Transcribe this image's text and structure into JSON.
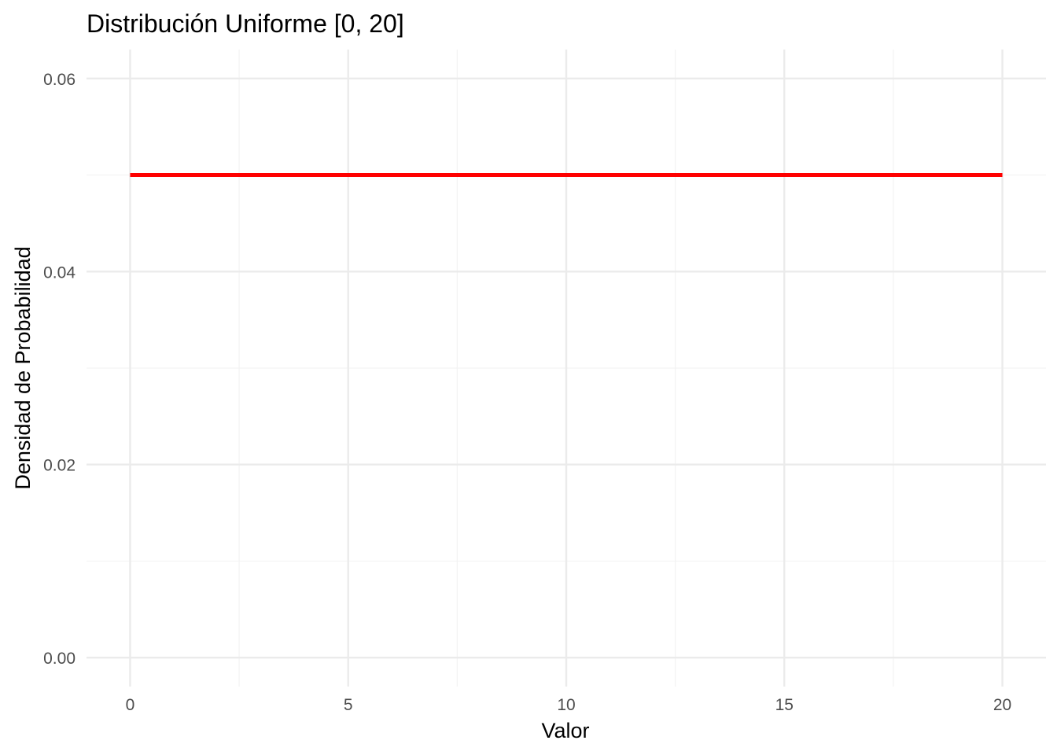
{
  "chart_data": {
    "type": "line",
    "title": "Distribución Uniforme [0, 20]",
    "xlabel": "Valor",
    "ylabel": "Densidad de Probabilidad",
    "xlim": [
      -1,
      21
    ],
    "ylim": [
      -0.003,
      0.063
    ],
    "x_ticks": [
      0,
      5,
      10,
      15,
      20
    ],
    "x_tick_labels": [
      "0",
      "5",
      "10",
      "15",
      "20"
    ],
    "x_minor_ticks": [
      2.5,
      7.5,
      12.5,
      17.5
    ],
    "y_ticks": [
      0.0,
      0.02,
      0.04,
      0.06
    ],
    "y_tick_labels": [
      "0.00",
      "0.02",
      "0.04",
      "0.06"
    ],
    "y_minor_ticks": [
      0.01,
      0.03,
      0.05
    ],
    "grid": true,
    "legend": "none",
    "series": [
      {
        "color": "#ff0000",
        "x": [
          0,
          20
        ],
        "y": [
          0.05,
          0.05
        ]
      }
    ],
    "colors": {
      "grid_major": "#ebebeb",
      "grid_minor": "#f3f3f3",
      "line": "#ff0000"
    }
  }
}
